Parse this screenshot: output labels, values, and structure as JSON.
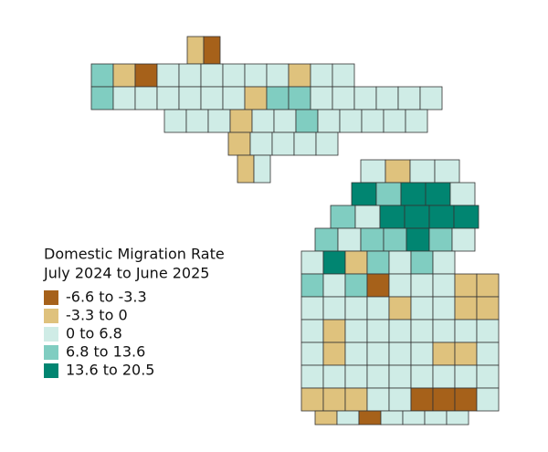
{
  "legend": {
    "title_lines": [
      "Domestic Migration Rate",
      "July 2024 to June 2025"
    ],
    "items": [
      {
        "label": "-6.6 to -3.3",
        "color": "#a6611a"
      },
      {
        "label": "-3.3 to 0",
        "color": "#dfc27d"
      },
      {
        "label": "0 to 6.8",
        "color": "#cfece6"
      },
      {
        "label": "6.8 to 13.6",
        "color": "#80cdc1"
      },
      {
        "label": "13.6 to 20.5",
        "color": "#018571"
      }
    ]
  }
}
